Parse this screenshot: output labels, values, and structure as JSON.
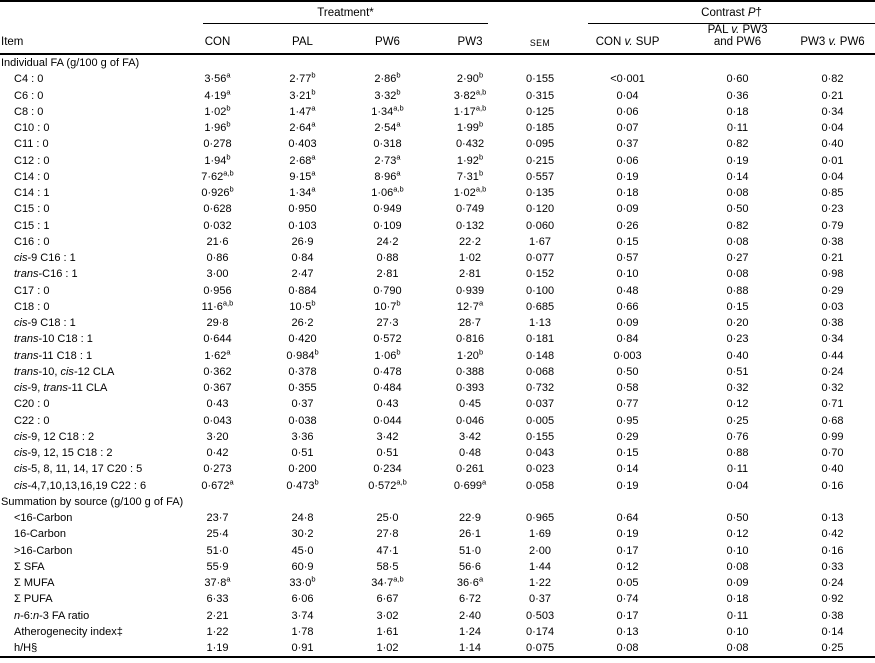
{
  "colors": {
    "background": "#ffffff",
    "text": "#000000",
    "rules": "#000000"
  },
  "table": {
    "group_headers": {
      "treatment": "Treatment*",
      "contrast": "Contrast *P*†"
    },
    "col_headers": {
      "item": "Item",
      "treatments": [
        "CON",
        "PAL",
        "PW6",
        "PW3"
      ],
      "sem": "SEM",
      "contrasts": [
        "CON *v.* SUP",
        "PAL *v.* PW3|and PW6",
        "PW3 *v.* PW6"
      ]
    },
    "column_keys": [
      "con",
      "pal",
      "pw6",
      "pw3",
      "sem",
      "con-v-sup",
      "pal-v-pw3-and-pw6",
      "pw3-v-pw6"
    ],
    "sections": [
      {
        "label": "Individual FA (g/100 g of FA)",
        "rows": [
          {
            "item": "C4 : 0",
            "values": [
              "3·56^a",
              "2·77^b",
              "2·86^b",
              "2·90^b",
              "0·155",
              "<0·001",
              "0·60",
              "0·82"
            ]
          },
          {
            "item": "C6 : 0",
            "values": [
              "4·19^a",
              "3·21^b",
              "3·32^b",
              "3·82^a,b",
              "0·315",
              "0·04",
              "0·36",
              "0·21"
            ]
          },
          {
            "item": "C8 : 0",
            "values": [
              "1·02^b",
              "1·47^a",
              "1·34^a,b",
              "1·17^a,b",
              "0·125",
              "0·06",
              "0·18",
              "0·34"
            ]
          },
          {
            "item": "C10 : 0",
            "values": [
              "1·96^b",
              "2·64^a",
              "2·54^a",
              "1·99^b",
              "0·185",
              "0·07",
              "0·11",
              "0·04"
            ]
          },
          {
            "item": "C11 : 0",
            "values": [
              "0·278",
              "0·403",
              "0·318",
              "0·432",
              "0·095",
              "0·37",
              "0·82",
              "0·40"
            ]
          },
          {
            "item": "C12 : 0",
            "values": [
              "1·94^b",
              "2·68^a",
              "2·73^a",
              "1·92^b",
              "0·215",
              "0·06",
              "0·19",
              "0·01"
            ]
          },
          {
            "item": "C14 : 0",
            "values": [
              "7·62^a,b",
              "9·15^a",
              "8·96^a",
              "7·31^b",
              "0·557",
              "0·19",
              "0·14",
              "0·04"
            ]
          },
          {
            "item": "C14 : 1",
            "values": [
              "0·926^b",
              "1·34^a",
              "1·06^a,b",
              "1·02^a,b",
              "0·135",
              "0·18",
              "0·08",
              "0·85"
            ]
          },
          {
            "item": "C15 : 0",
            "values": [
              "0·628",
              "0·950",
              "0·949",
              "0·749",
              "0·120",
              "0·09",
              "0·50",
              "0·23"
            ]
          },
          {
            "item": "C15 : 1",
            "values": [
              "0·032",
              "0·103",
              "0·109",
              "0·132",
              "0·060",
              "0·26",
              "0·82",
              "0·79"
            ]
          },
          {
            "item": "C16 : 0",
            "values": [
              "21·6",
              "26·9",
              "24·2",
              "22·2",
              "1·67",
              "0·15",
              "0·08",
              "0·38"
            ]
          },
          {
            "item": "*cis*-9 C16 : 1",
            "values": [
              "0·86",
              "0·84",
              "0·88",
              "1·02",
              "0·077",
              "0·57",
              "0·27",
              "0·21"
            ]
          },
          {
            "item": "*trans*-C16 : 1",
            "values": [
              "3·00",
              "2·47",
              "2·81",
              "2·81",
              "0·152",
              "0·10",
              "0·08",
              "0·98"
            ]
          },
          {
            "item": "C17 : 0",
            "values": [
              "0·956",
              "0·884",
              "0·790",
              "0·939",
              "0·100",
              "0·48",
              "0·88",
              "0·29"
            ]
          },
          {
            "item": "C18 : 0",
            "values": [
              "11·6^a,b",
              "10·5^b",
              "10·7^b",
              "12·7^a",
              "0·685",
              "0·66",
              "0·15",
              "0·03"
            ]
          },
          {
            "item": "*cis*-9 C18 : 1",
            "values": [
              "29·8",
              "26·2",
              "27·3",
              "28·7",
              "1·13",
              "0·09",
              "0·20",
              "0·38"
            ]
          },
          {
            "item": "*trans*-10 C18 : 1",
            "values": [
              "0·644",
              "0·420",
              "0·572",
              "0·816",
              "0·181",
              "0·84",
              "0·23",
              "0·34"
            ]
          },
          {
            "item": "*trans*-11 C18 : 1",
            "values": [
              "1·62^a",
              "0·984^b",
              "1·06^b",
              "1·20^b",
              "0·148",
              "0·003",
              "0·40",
              "0·44"
            ]
          },
          {
            "item": "*trans*-10, *cis*-12 CLA",
            "values": [
              "0·362",
              "0·378",
              "0·478",
              "0·388",
              "0·068",
              "0·50",
              "0·51",
              "0·24"
            ]
          },
          {
            "item": "*cis*-9, *trans*-11 CLA",
            "values": [
              "0·367",
              "0·355",
              "0·484",
              "0·393",
              "0·732",
              "0·58",
              "0·32",
              "0·32"
            ]
          },
          {
            "item": "C20 : 0",
            "values": [
              "0·43",
              "0·37",
              "0·43",
              "0·45",
              "0·037",
              "0·77",
              "0·12",
              "0·71"
            ]
          },
          {
            "item": "C22 : 0",
            "values": [
              "0·043",
              "0·038",
              "0·044",
              "0·046",
              "0·005",
              "0·95",
              "0·25",
              "0·68"
            ]
          },
          {
            "item": "*cis*-9, 12 C18 : 2",
            "values": [
              "3·20",
              "3·36",
              "3·42",
              "3·42",
              "0·155",
              "0·29",
              "0·76",
              "0·99"
            ]
          },
          {
            "item": "*cis*-9, 12, 15 C18 : 2",
            "values": [
              "0·42",
              "0·51",
              "0·51",
              "0·48",
              "0·043",
              "0·15",
              "0·88",
              "0·70"
            ]
          },
          {
            "item": "*cis*-5, 8, 11, 14, 17 C20 : 5",
            "values": [
              "0·273",
              "0·200",
              "0·234",
              "0·261",
              "0·023",
              "0·14",
              "0·11",
              "0·40"
            ]
          },
          {
            "item": "*cis*-4,7,10,13,16,19 C22 : 6",
            "values": [
              "0·672^a",
              "0·473^b",
              "0·572^a,b",
              "0·699^a",
              "0·058",
              "0·19",
              "0·04",
              "0·16"
            ]
          }
        ]
      },
      {
        "label": "Summation by source (g/100 g of FA)",
        "rows": [
          {
            "item": "<16-Carbon",
            "values": [
              "23·7",
              "24·8",
              "25·0",
              "22·9",
              "0·965",
              "0·64",
              "0·50",
              "0·13"
            ]
          },
          {
            "item": "16-Carbon",
            "values": [
              "25·4",
              "30·2",
              "27·8",
              "26·1",
              "1·69",
              "0·19",
              "0·12",
              "0·42"
            ]
          },
          {
            "item": ">16-Carbon",
            "values": [
              "51·0",
              "45·0",
              "47·1",
              "51·0",
              "2·00",
              "0·17",
              "0·10",
              "0·16"
            ]
          },
          {
            "item": "Σ SFA",
            "values": [
              "55·9",
              "60·9",
              "58·5",
              "56·6",
              "1·44",
              "0·12",
              "0·08",
              "0·33"
            ]
          },
          {
            "item": "Σ MUFA",
            "values": [
              "37·8^a",
              "33·0^b",
              "34·7^a,b",
              "36·6^a",
              "1·22",
              "0·05",
              "0·09",
              "0·24"
            ]
          },
          {
            "item": "Σ PUFA",
            "values": [
              "6·33",
              "6·06",
              "6·67",
              "6·72",
              "0·37",
              "0·74",
              "0·18",
              "0·92"
            ]
          },
          {
            "item": "*n*-6:*n*-3 FA ratio",
            "values": [
              "2·21",
              "3·74",
              "3·02",
              "2·40",
              "0·503",
              "0·17",
              "0·11",
              "0·38"
            ]
          },
          {
            "item": "Atherogenecity index‡",
            "values": [
              "1·22",
              "1·78",
              "1·61",
              "1·24",
              "0·174",
              "0·13",
              "0·10",
              "0·14"
            ]
          },
          {
            "item": "h/H§",
            "values": [
              "1·19",
              "0·91",
              "1·02",
              "1·14",
              "0·075",
              "0·08",
              "0·08",
              "0·25"
            ]
          }
        ]
      }
    ]
  }
}
